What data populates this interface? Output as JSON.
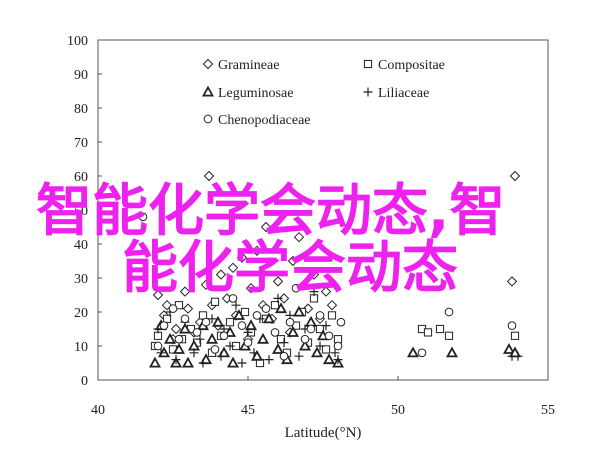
{
  "chart_data": {
    "type": "scatter",
    "xlabel": "Latitude(°N)",
    "ylabel": "",
    "xlim": [
      40,
      55
    ],
    "ylim": [
      0,
      100
    ],
    "xticks": [
      "40",
      "45",
      "50",
      "55"
    ],
    "yticks": [
      "0",
      "10",
      "20",
      "30",
      "40",
      "50",
      "60",
      "70",
      "80",
      "90",
      "100"
    ],
    "grid": false,
    "legend": "top-center",
    "series": [
      {
        "name": "Gramineae",
        "marker": "diamond",
        "points": [
          [
            42.0,
            25
          ],
          [
            42.2,
            19
          ],
          [
            42.3,
            22
          ],
          [
            42.5,
            12
          ],
          [
            42.6,
            15
          ],
          [
            42.9,
            26
          ],
          [
            43.0,
            21
          ],
          [
            43.2,
            14
          ],
          [
            43.4,
            17
          ],
          [
            43.6,
            28
          ],
          [
            43.7,
            60
          ],
          [
            43.8,
            22
          ],
          [
            44.0,
            16
          ],
          [
            44.1,
            31
          ],
          [
            44.3,
            24
          ],
          [
            44.5,
            33
          ],
          [
            44.6,
            19
          ],
          [
            44.8,
            36
          ],
          [
            45.0,
            12
          ],
          [
            45.1,
            27
          ],
          [
            45.3,
            38
          ],
          [
            45.5,
            22
          ],
          [
            45.6,
            45
          ],
          [
            45.8,
            18
          ],
          [
            46.0,
            29
          ],
          [
            46.2,
            24
          ],
          [
            46.4,
            14
          ],
          [
            46.5,
            35
          ],
          [
            46.7,
            42
          ],
          [
            47.0,
            21
          ],
          [
            47.2,
            31
          ],
          [
            47.4,
            18
          ],
          [
            47.6,
            26
          ],
          [
            47.8,
            22
          ],
          [
            53.8,
            29
          ],
          [
            53.9,
            60
          ]
        ]
      },
      {
        "name": "Compositae",
        "marker": "square",
        "points": [
          [
            41.9,
            10
          ],
          [
            42.0,
            13
          ],
          [
            42.3,
            18
          ],
          [
            42.5,
            9
          ],
          [
            42.7,
            22
          ],
          [
            42.8,
            12
          ],
          [
            43.1,
            15
          ],
          [
            43.3,
            11
          ],
          [
            43.5,
            19
          ],
          [
            43.8,
            8
          ],
          [
            43.9,
            23
          ],
          [
            44.1,
            13
          ],
          [
            44.4,
            17
          ],
          [
            44.6,
            10
          ],
          [
            44.9,
            20
          ],
          [
            45.1,
            14
          ],
          [
            45.4,
            5
          ],
          [
            45.6,
            18
          ],
          [
            45.9,
            22
          ],
          [
            46.1,
            12
          ],
          [
            46.3,
            8
          ],
          [
            46.6,
            16
          ],
          [
            46.8,
            20
          ],
          [
            47.0,
            11
          ],
          [
            47.2,
            24
          ],
          [
            47.4,
            15
          ],
          [
            47.6,
            9
          ],
          [
            47.8,
            19
          ],
          [
            48.0,
            12
          ],
          [
            50.8,
            15
          ],
          [
            51.0,
            14
          ],
          [
            51.4,
            15
          ],
          [
            51.7,
            13
          ],
          [
            53.9,
            13
          ]
        ]
      },
      {
        "name": "Leguminosae",
        "marker": "triangle",
        "points": [
          [
            41.9,
            5
          ],
          [
            42.1,
            16
          ],
          [
            42.2,
            8
          ],
          [
            42.4,
            12
          ],
          [
            42.6,
            5
          ],
          [
            42.7,
            9
          ],
          [
            42.9,
            15
          ],
          [
            43.0,
            5
          ],
          [
            43.2,
            10
          ],
          [
            43.5,
            16
          ],
          [
            43.6,
            6
          ],
          [
            43.8,
            12
          ],
          [
            44.0,
            17
          ],
          [
            44.2,
            8
          ],
          [
            44.4,
            14
          ],
          [
            44.5,
            5
          ],
          [
            44.7,
            19
          ],
          [
            44.9,
            10
          ],
          [
            45.1,
            16
          ],
          [
            45.3,
            7
          ],
          [
            45.5,
            12
          ],
          [
            45.7,
            18
          ],
          [
            46.0,
            9
          ],
          [
            46.1,
            21
          ],
          [
            46.3,
            6
          ],
          [
            46.5,
            14
          ],
          [
            46.7,
            20
          ],
          [
            46.9,
            10
          ],
          [
            47.1,
            17
          ],
          [
            47.3,
            8
          ],
          [
            47.5,
            13
          ],
          [
            47.7,
            6
          ],
          [
            48.0,
            5
          ],
          [
            50.5,
            8
          ],
          [
            51.8,
            8
          ],
          [
            53.7,
            9
          ],
          [
            53.9,
            8
          ]
        ]
      },
      {
        "name": "Liliaceae",
        "marker": "plus",
        "points": [
          [
            42.0,
            15
          ],
          [
            42.1,
            8
          ],
          [
            42.4,
            20
          ],
          [
            42.6,
            6
          ],
          [
            42.9,
            17
          ],
          [
            43.2,
            8
          ],
          [
            43.4,
            12
          ],
          [
            43.5,
            5
          ],
          [
            43.8,
            18
          ],
          [
            44.1,
            7
          ],
          [
            44.2,
            15
          ],
          [
            44.4,
            10
          ],
          [
            44.6,
            22
          ],
          [
            44.8,
            5
          ],
          [
            45.0,
            14
          ],
          [
            45.2,
            8
          ],
          [
            45.4,
            18
          ],
          [
            45.7,
            6
          ],
          [
            46.0,
            24
          ],
          [
            46.2,
            11
          ],
          [
            46.4,
            19
          ],
          [
            46.7,
            7
          ],
          [
            46.9,
            15
          ],
          [
            47.2,
            26
          ],
          [
            47.4,
            10
          ],
          [
            47.6,
            16
          ],
          [
            47.9,
            8
          ],
          [
            48.0,
            6
          ],
          [
            53.8,
            7
          ],
          [
            54.0,
            7
          ]
        ]
      },
      {
        "name": "Chenopodiaceae",
        "marker": "circle",
        "points": [
          [
            41.5,
            48
          ],
          [
            42.0,
            10
          ],
          [
            42.2,
            16
          ],
          [
            42.5,
            21
          ],
          [
            42.7,
            12
          ],
          [
            42.9,
            18
          ],
          [
            43.3,
            14
          ],
          [
            43.6,
            17
          ],
          [
            43.9,
            9
          ],
          [
            44.2,
            13
          ],
          [
            44.5,
            24
          ],
          [
            44.8,
            16
          ],
          [
            45.0,
            11
          ],
          [
            45.3,
            19
          ],
          [
            45.6,
            21
          ],
          [
            45.9,
            14
          ],
          [
            46.2,
            7
          ],
          [
            46.4,
            17
          ],
          [
            46.6,
            27
          ],
          [
            46.9,
            12
          ],
          [
            47.1,
            15
          ],
          [
            47.4,
            19
          ],
          [
            47.7,
            13
          ],
          [
            48.0,
            10
          ],
          [
            48.1,
            17
          ],
          [
            50.8,
            8
          ],
          [
            51.7,
            20
          ],
          [
            53.8,
            16
          ]
        ]
      }
    ]
  },
  "overlay": {
    "line1": "智能化学会动态,智",
    "line2": "能化学会动态"
  },
  "colors": {
    "marker": "#222222",
    "axis": "#555555",
    "overlay": "#ee22ee"
  }
}
